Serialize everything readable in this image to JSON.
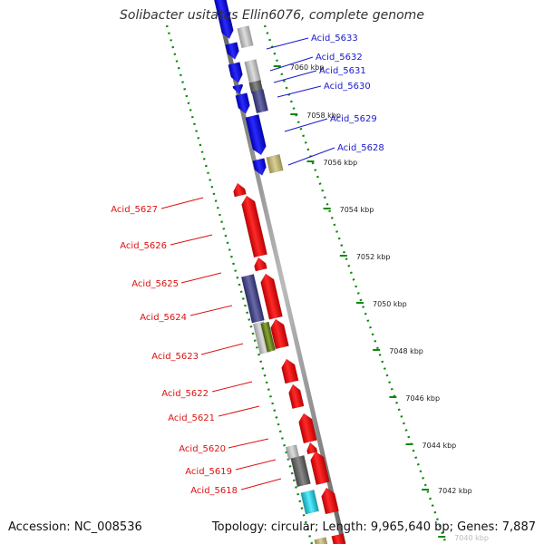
{
  "header": {
    "title": "Solibacter usitatus Ellin6076, complete genome"
  },
  "footer": {
    "accession": "Accession: NC_008536",
    "topology": "Topology: circular; Length: 9,965,640 bp; Genes: 7,887"
  },
  "colors": {
    "forward_gene": "#0000ee",
    "reverse_gene": "#ee0000",
    "forward_label": "#1a1acc",
    "reverse_label": "#dd1111",
    "backbone": "#888888",
    "dotted_ring": "#118811",
    "rna_gray": "#aaaaaa",
    "dark_gray": "#666666",
    "slate": "#4a4a8a",
    "olive": "#b8b070",
    "green": "#668822",
    "cyan": "#22ccdd"
  },
  "map": {
    "tick_labels": [
      "7060 kbp",
      "7058 kbp",
      "7056 kbp",
      "7054 kbp",
      "7052 kbp",
      "7050 kbp",
      "7048 kbp",
      "7046 kbp",
      "7044 kbp",
      "7042 kbp",
      "7040 kbp"
    ],
    "forward_genes": [
      {
        "label": "Acid_5633"
      },
      {
        "label": "Acid_5632"
      },
      {
        "label": "Acid_5631"
      },
      {
        "label": "Acid_5630"
      },
      {
        "label": "Acid_5629"
      },
      {
        "label": "Acid_5628"
      }
    ],
    "reverse_genes": [
      {
        "label": "Acid_5627"
      },
      {
        "label": "Acid_5626"
      },
      {
        "label": "Acid_5625"
      },
      {
        "label": "Acid_5624"
      },
      {
        "label": "Acid_5623"
      },
      {
        "label": "Acid_5622"
      },
      {
        "label": "Acid_5621"
      },
      {
        "label": "Acid_5620"
      },
      {
        "label": "Acid_5619"
      },
      {
        "label": "Acid_5618"
      }
    ]
  }
}
